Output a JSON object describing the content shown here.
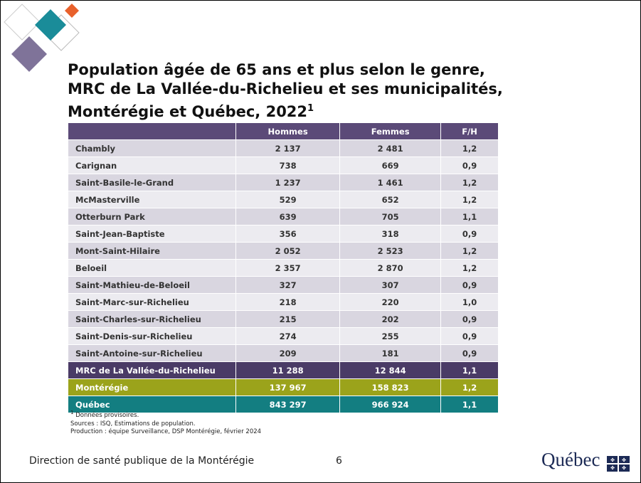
{
  "title": {
    "lines": [
      "Population âgée de 65 ans et plus selon le genre,",
      "MRC de La Vallée-du-Richelieu et ses municipalités,",
      "Montérégie et Québec, 2022"
    ],
    "note_mark": "1"
  },
  "table": {
    "columns": [
      "Hommes",
      "Femmes",
      "F/H"
    ],
    "rows": [
      [
        "Chambly",
        "2 137",
        "2 481",
        "1,2"
      ],
      [
        "Carignan",
        "738",
        "669",
        "0,9"
      ],
      [
        "Saint-Basile-le-Grand",
        "1 237",
        "1 461",
        "1,2"
      ],
      [
        "McMasterville",
        "529",
        "652",
        "1,2"
      ],
      [
        "Otterburn Park",
        "639",
        "705",
        "1,1"
      ],
      [
        "Saint-Jean-Baptiste",
        "356",
        "318",
        "0,9"
      ],
      [
        "Mont-Saint-Hilaire",
        "2 052",
        "2 523",
        "1,2"
      ],
      [
        "Beloeil",
        "2 357",
        "2 870",
        "1,2"
      ],
      [
        "Saint-Mathieu-de-Beloeil",
        "327",
        "307",
        "0,9"
      ],
      [
        "Saint-Marc-sur-Richelieu",
        "218",
        "220",
        "1,0"
      ],
      [
        "Saint-Charles-sur-Richelieu",
        "215",
        "202",
        "0,9"
      ],
      [
        "Saint-Denis-sur-Richelieu",
        "274",
        "255",
        "0,9"
      ],
      [
        "Saint-Antoine-sur-Richelieu",
        "209",
        "181",
        "0,9"
      ]
    ],
    "summary_rows": [
      [
        "MRC de La Vallée-du-Richelieu",
        "11 288",
        "12 844",
        "1,1"
      ],
      [
        "Montérégie",
        "137 967",
        "158 823",
        "1,2"
      ],
      [
        "Québec",
        "843 297",
        "966 924",
        "1,1"
      ]
    ]
  },
  "footnotes": {
    "note_mark": "1",
    "note": "Données provisoires.",
    "sources": "Sources : ISQ, Estimations de population.",
    "production": "Production : équipe Surveillance, DSP Montérégie, février 2024"
  },
  "footer": {
    "organization": "Direction de santé publique de la Montérégie",
    "page": "6",
    "logo": "Québec"
  }
}
